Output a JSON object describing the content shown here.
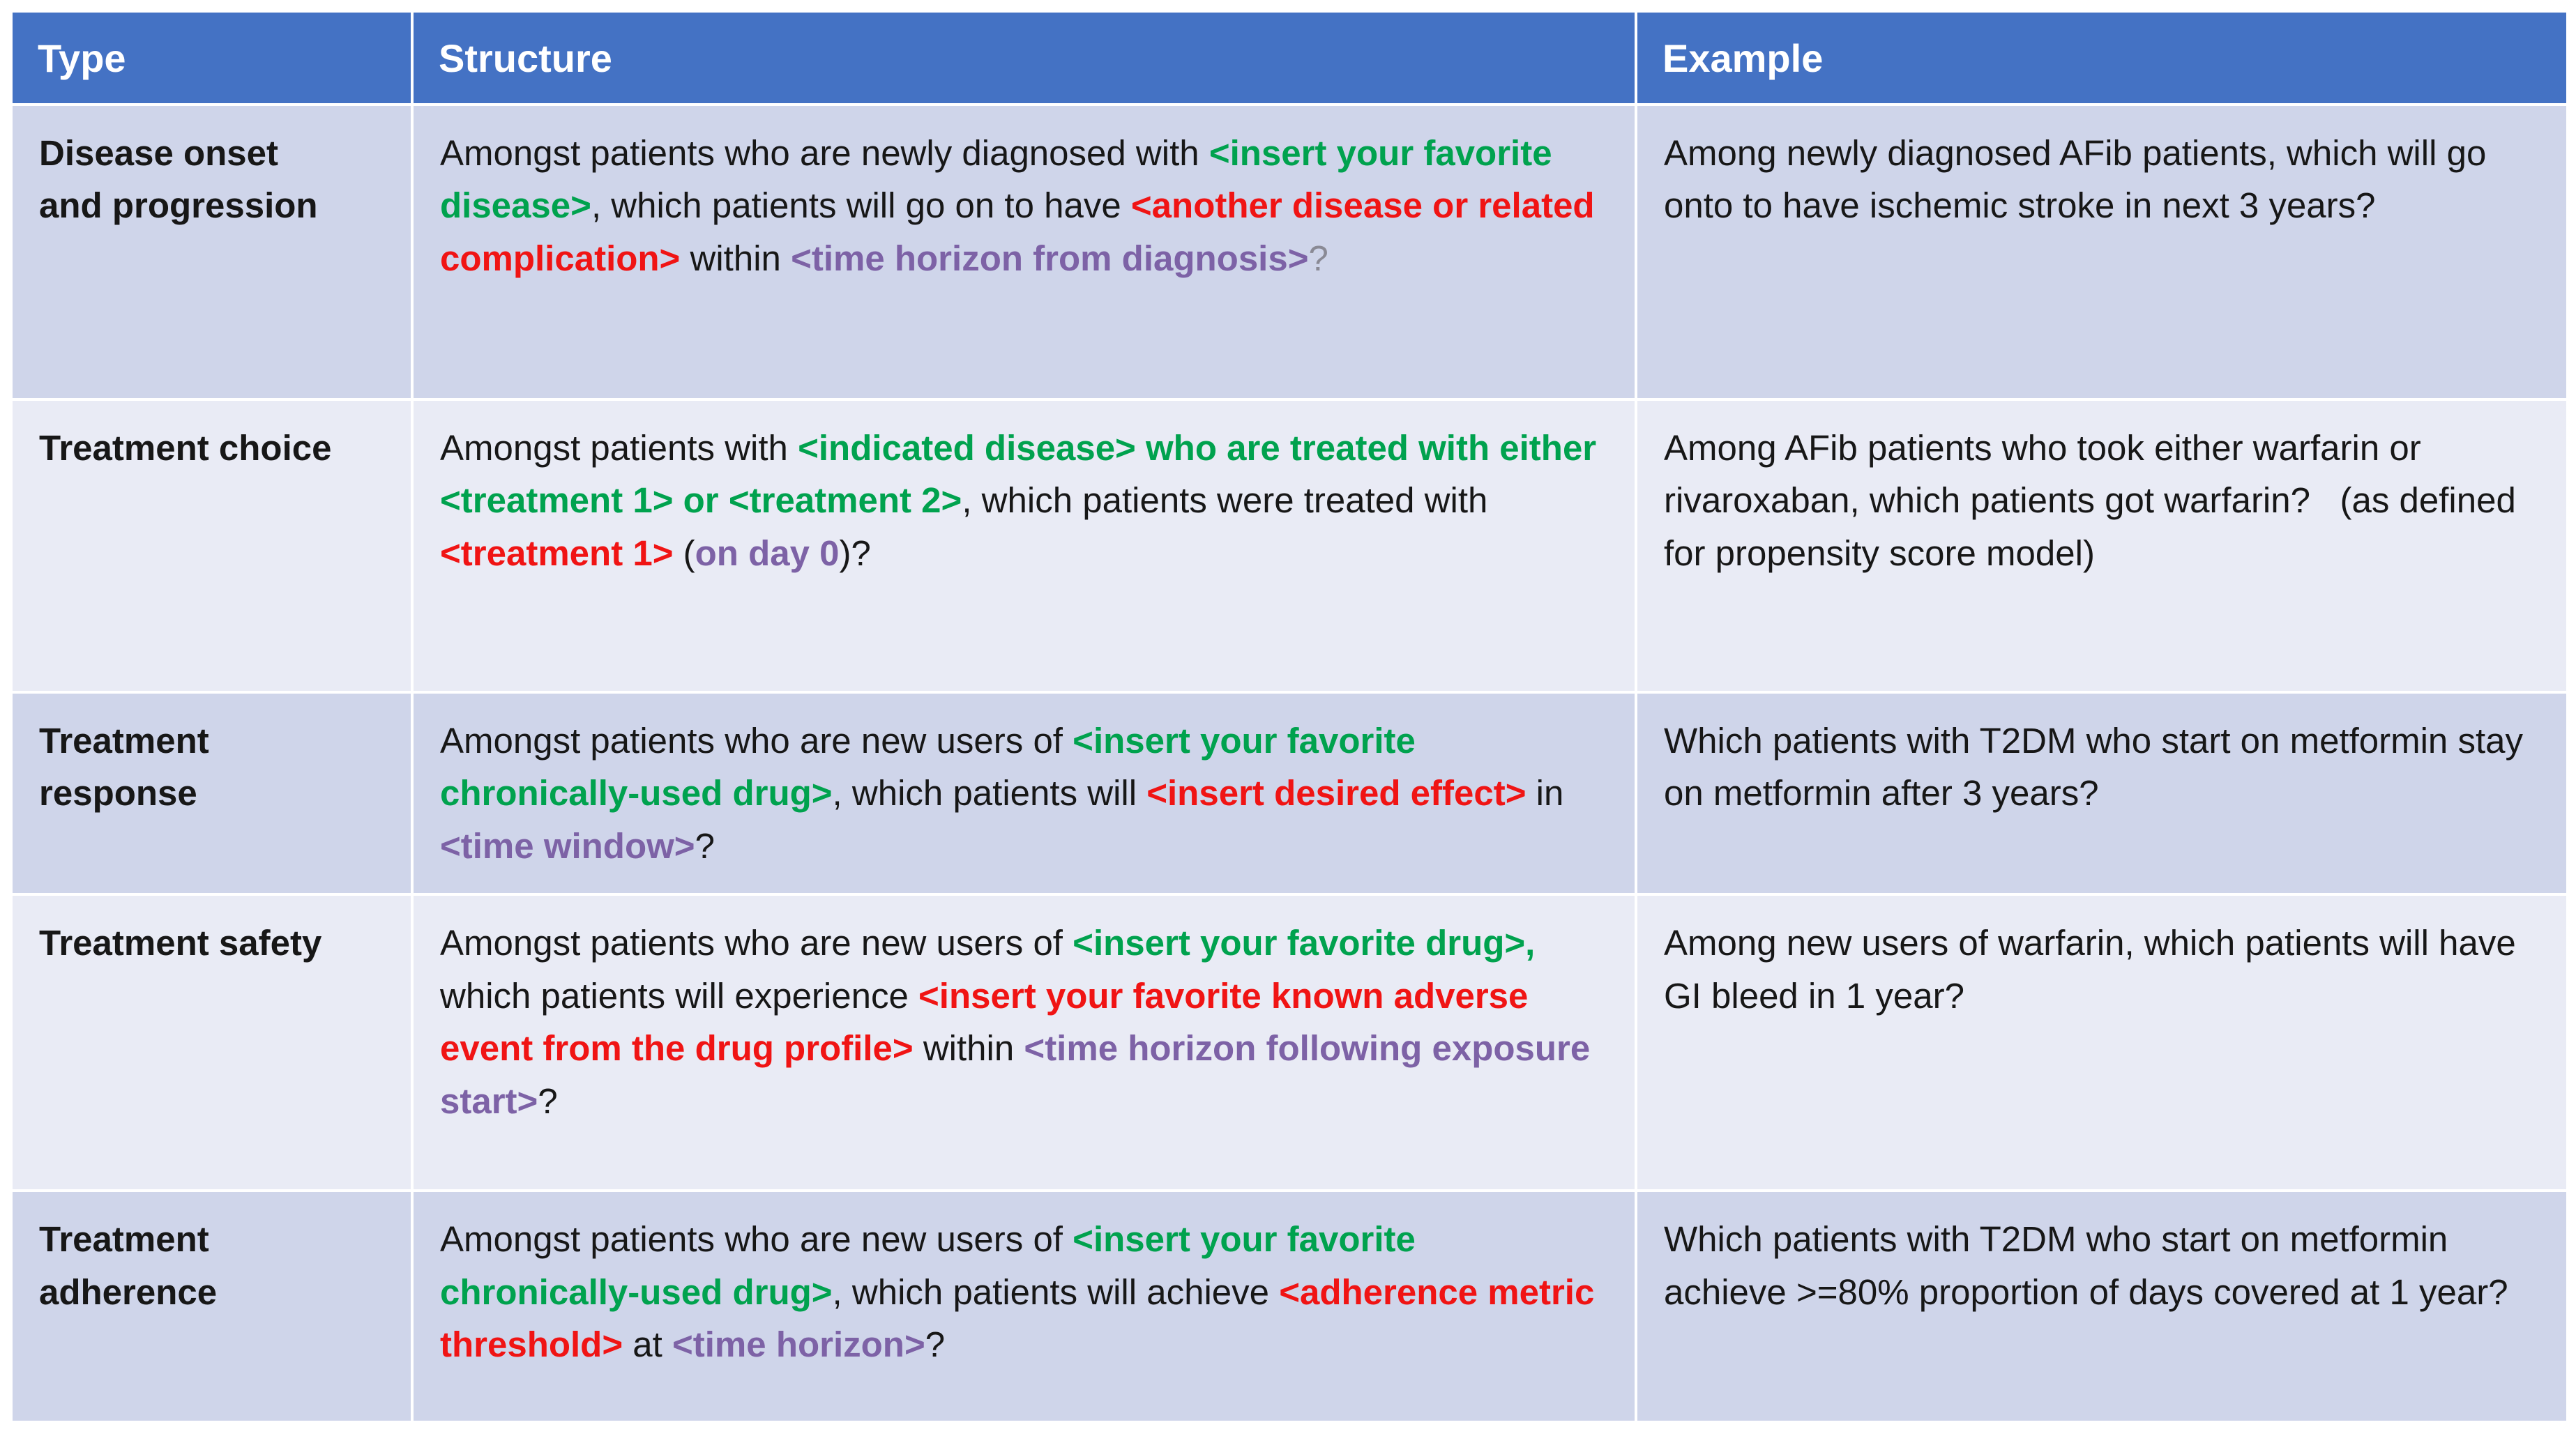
{
  "table": {
    "colors": {
      "header_bg": "#4472C4",
      "band_odd": "#CFD5EA",
      "band_even": "#E9EBF5",
      "green": "#00A24E",
      "red": "#F01414",
      "purple": "#7D62A6",
      "text": "#171717"
    },
    "headers": [
      {
        "label": "Type"
      },
      {
        "label": "Structure"
      },
      {
        "label": "Example"
      }
    ],
    "rows": [
      {
        "type": "Disease onset and progression",
        "structure": [
          {
            "t": "Amongst patients who are newly diagnosed with ",
            "c": "black"
          },
          {
            "t": "<insert your favorite disease>",
            "c": "green"
          },
          {
            "t": ", which patients will go on to have ",
            "c": "black"
          },
          {
            "t": "<another disease or related complication>",
            "c": "red"
          },
          {
            "t": " within ",
            "c": "black"
          },
          {
            "t": "<time horizon from diagnosis>",
            "c": "purple"
          },
          {
            "t": "?",
            "c": "gray"
          }
        ],
        "example": "Among newly diagnosed AFib patients, which will go onto to have ischemic stroke in next 3 years?"
      },
      {
        "type": "Treatment choice",
        "structure": [
          {
            "t": "Amongst patients with ",
            "c": "black"
          },
          {
            "t": "<indicated disease> who are treated with either <treatment 1> or <treatment 2>",
            "c": "green"
          },
          {
            "t": ", which patients were treated with ",
            "c": "black"
          },
          {
            "t": "<treatment 1>",
            "c": "red"
          },
          {
            "t": " (",
            "c": "black"
          },
          {
            "t": "on day 0",
            "c": "purple"
          },
          {
            "t": ")?",
            "c": "black"
          }
        ],
        "example": "Among AFib patients who took either warfarin or rivaroxaban, which patients got warfarin?   (as defined for propensity score model)"
      },
      {
        "type": "Treatment response",
        "structure": [
          {
            "t": "Amongst patients who are new users of ",
            "c": "black"
          },
          {
            "t": "<insert your favorite chronically-used drug>",
            "c": "green"
          },
          {
            "t": ", which patients will ",
            "c": "black"
          },
          {
            "t": "<insert desired effect>",
            "c": "red"
          },
          {
            "t": " in ",
            "c": "black"
          },
          {
            "t": "<time window>",
            "c": "purple"
          },
          {
            "t": "?",
            "c": "black"
          }
        ],
        "example": "Which patients with T2DM who start on metformin stay on metformin after 3 years?"
      },
      {
        "type": "Treatment safety",
        "structure": [
          {
            "t": "Amongst patients who are new users of ",
            "c": "black"
          },
          {
            "t": "<insert your favorite drug>,",
            "c": "green"
          },
          {
            "t": " which patients will experience ",
            "c": "black"
          },
          {
            "t": "<insert your favorite known adverse event from the drug profile>",
            "c": "red"
          },
          {
            "t": " within ",
            "c": "black"
          },
          {
            "t": "<time horizon following exposure start>",
            "c": "purple"
          },
          {
            "t": "?",
            "c": "black"
          }
        ],
        "example": "Among new users of warfarin, which patients will have GI bleed in 1 year?"
      },
      {
        "type": "Treatment adherence",
        "structure": [
          {
            "t": "Amongst patients who are new users of ",
            "c": "black"
          },
          {
            "t": "<insert your favorite chronically-used drug>",
            "c": "green"
          },
          {
            "t": ", which patients will achieve ",
            "c": "black"
          },
          {
            "t": "<adherence metric threshold>",
            "c": "red"
          },
          {
            "t": " at ",
            "c": "black"
          },
          {
            "t": "<time horizon>",
            "c": "purple"
          },
          {
            "t": "?",
            "c": "black"
          }
        ],
        "example": "Which patients with T2DM who start on metformin achieve >=80% proportion of days covered at 1 year?"
      }
    ]
  }
}
